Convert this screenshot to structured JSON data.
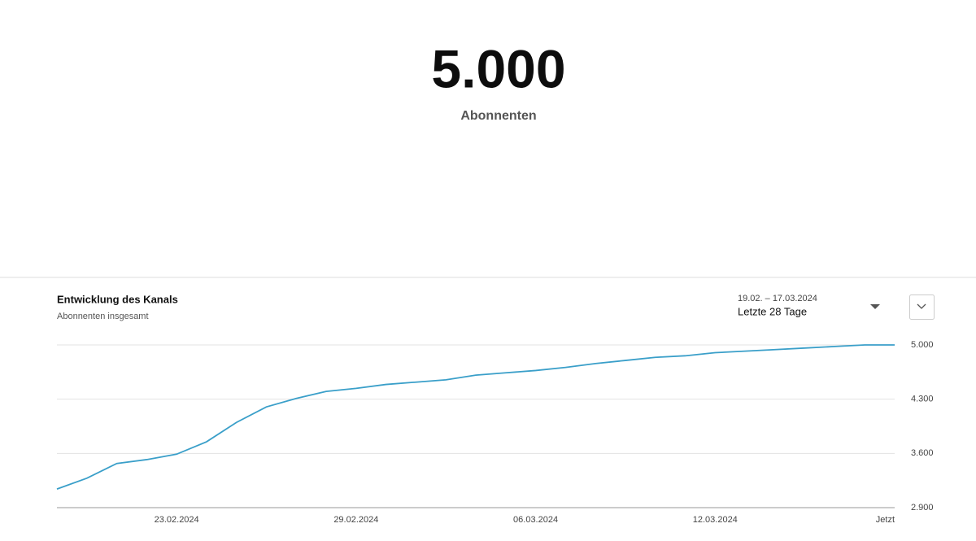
{
  "header": {
    "count": "5.000",
    "label": "Abonnenten"
  },
  "card": {
    "range_dates": "19.02. – 17.03.2024",
    "range_name": "Letzte 28 Tage"
  },
  "chart_data": {
    "type": "line",
    "title": "Entwicklung des Kanals",
    "subtitle": "Abonnenten insgesamt",
    "categories": [
      null,
      null,
      null,
      null,
      "23.02.2024",
      null,
      null,
      null,
      null,
      null,
      "29.02.2024",
      null,
      null,
      null,
      null,
      null,
      "06.03.2024",
      null,
      null,
      null,
      null,
      null,
      "12.03.2024",
      null,
      null,
      null,
      null,
      null,
      "Jetzt"
    ],
    "series": [
      {
        "name": "Abonnenten insgesamt",
        "color": "#3a9fc9",
        "values": [
          3140,
          3280,
          3470,
          3520,
          3590,
          3750,
          4000,
          4200,
          4310,
          4400,
          4440,
          4490,
          4520,
          4550,
          4610,
          4640,
          4670,
          4710,
          4760,
          4800,
          4840,
          4860,
          4900,
          4920,
          4940,
          4960,
          4980,
          5000,
          5000
        ]
      }
    ],
    "ylim": [
      2900,
      5000
    ],
    "yticks": [
      {
        "value": 2900,
        "label": "2.900"
      },
      {
        "value": 3600,
        "label": "3.600"
      },
      {
        "value": 4300,
        "label": "4.300"
      },
      {
        "value": 5000,
        "label": "5.000"
      }
    ],
    "grid": true
  }
}
